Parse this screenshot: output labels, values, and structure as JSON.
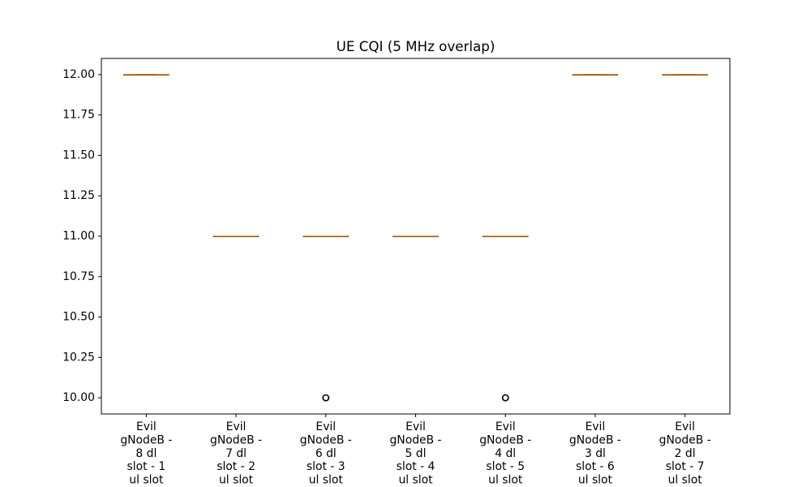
{
  "chart_data": {
    "type": "box",
    "title": "UE CQI (5 MHz overlap)",
    "xlabel": "",
    "ylabel": "",
    "ylim": [
      9.9,
      12.1
    ],
    "yticks": [
      10.0,
      10.25,
      10.5,
      10.75,
      11.0,
      11.25,
      11.5,
      11.75,
      12.0
    ],
    "ytick_labels": [
      "10.00",
      "10.25",
      "10.50",
      "10.75",
      "11.00",
      "11.25",
      "11.50",
      "11.75",
      "12.00"
    ],
    "categories": [
      [
        "Evil",
        "gNodeB -",
        "8 dl",
        "slot - 1",
        "ul slot"
      ],
      [
        "Evil",
        "gNodeB -",
        "7 dl",
        "slot - 2",
        "ul slot"
      ],
      [
        "Evil",
        "gNodeB -",
        "6 dl",
        "slot - 3",
        "ul slot"
      ],
      [
        "Evil",
        "gNodeB -",
        "5 dl",
        "slot - 4",
        "ul slot"
      ],
      [
        "Evil",
        "gNodeB -",
        "4 dl",
        "slot - 5",
        "ul slot"
      ],
      [
        "Evil",
        "gNodeB -",
        "3 dl",
        "slot - 6",
        "ul slot"
      ],
      [
        "Evil",
        "gNodeB -",
        "2 dl",
        "slot - 7",
        "ul slot"
      ]
    ],
    "boxes": [
      {
        "min": 12,
        "q1": 12,
        "median": 12,
        "q3": 12,
        "max": 12,
        "outliers": []
      },
      {
        "min": 11,
        "q1": 11,
        "median": 11,
        "q3": 11,
        "max": 11,
        "outliers": []
      },
      {
        "min": 11,
        "q1": 11,
        "median": 11,
        "q3": 11,
        "max": 11,
        "outliers": [
          10
        ]
      },
      {
        "min": 11,
        "q1": 11,
        "median": 11,
        "q3": 11,
        "max": 11,
        "outliers": []
      },
      {
        "min": 11,
        "q1": 11,
        "median": 11,
        "q3": 11,
        "max": 11,
        "outliers": [
          10
        ]
      },
      {
        "min": 12,
        "q1": 12,
        "median": 12,
        "q3": 12,
        "max": 12,
        "outliers": []
      },
      {
        "min": 12,
        "q1": 12,
        "median": 12,
        "q3": 12,
        "max": 12,
        "outliers": []
      }
    ],
    "colors": {
      "box": "#000000",
      "median": "#ff7f0e",
      "outlier": "#000000"
    },
    "grid": false,
    "legend": false
  }
}
